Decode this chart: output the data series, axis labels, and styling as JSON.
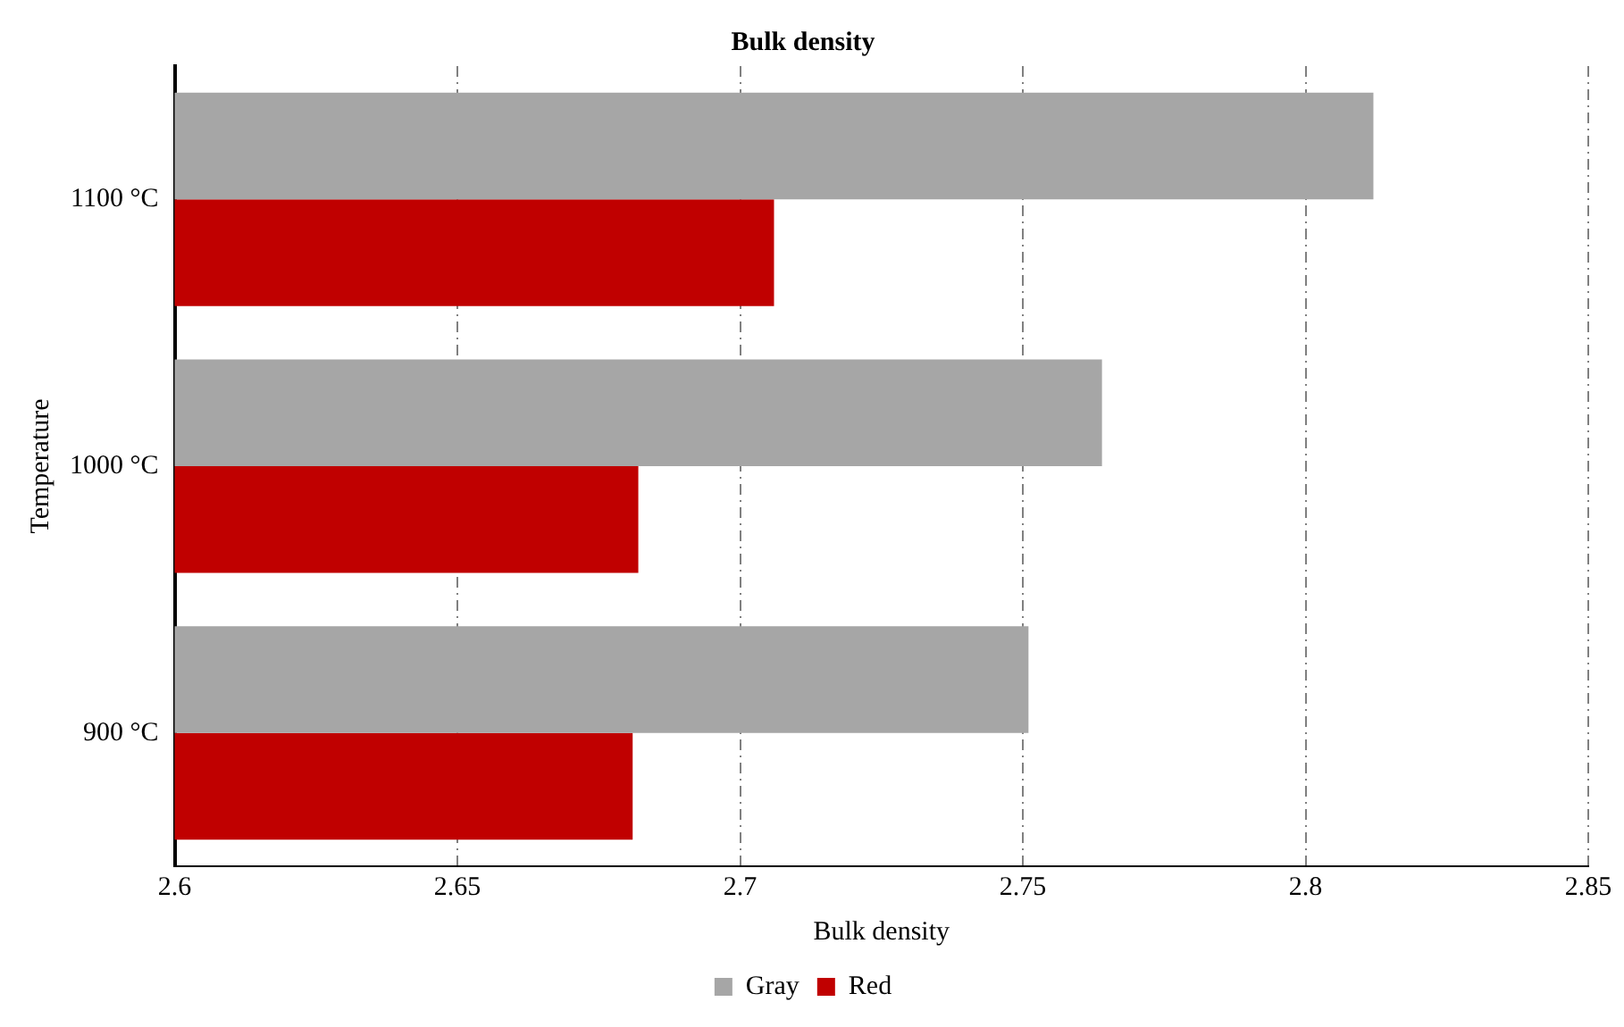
{
  "chart_data": {
    "type": "bar",
    "orientation": "horizontal",
    "title": "Bulk density",
    "xlabel": "Bulk density",
    "ylabel": "Temperature",
    "categories": [
      "1100 °C",
      "1000 °C",
      "900 °C"
    ],
    "series": [
      {
        "name": "Gray",
        "color": "#a6a6a6",
        "values": [
          2.812,
          2.764,
          2.751
        ]
      },
      {
        "name": "Red",
        "color": "#c00000",
        "values": [
          2.706,
          2.682,
          2.681
        ]
      }
    ],
    "xlim": [
      2.6,
      2.85
    ],
    "xticks": [
      2.6,
      2.65,
      2.7,
      2.75,
      2.8,
      2.85
    ],
    "grid": "x",
    "legend": "bottom"
  }
}
